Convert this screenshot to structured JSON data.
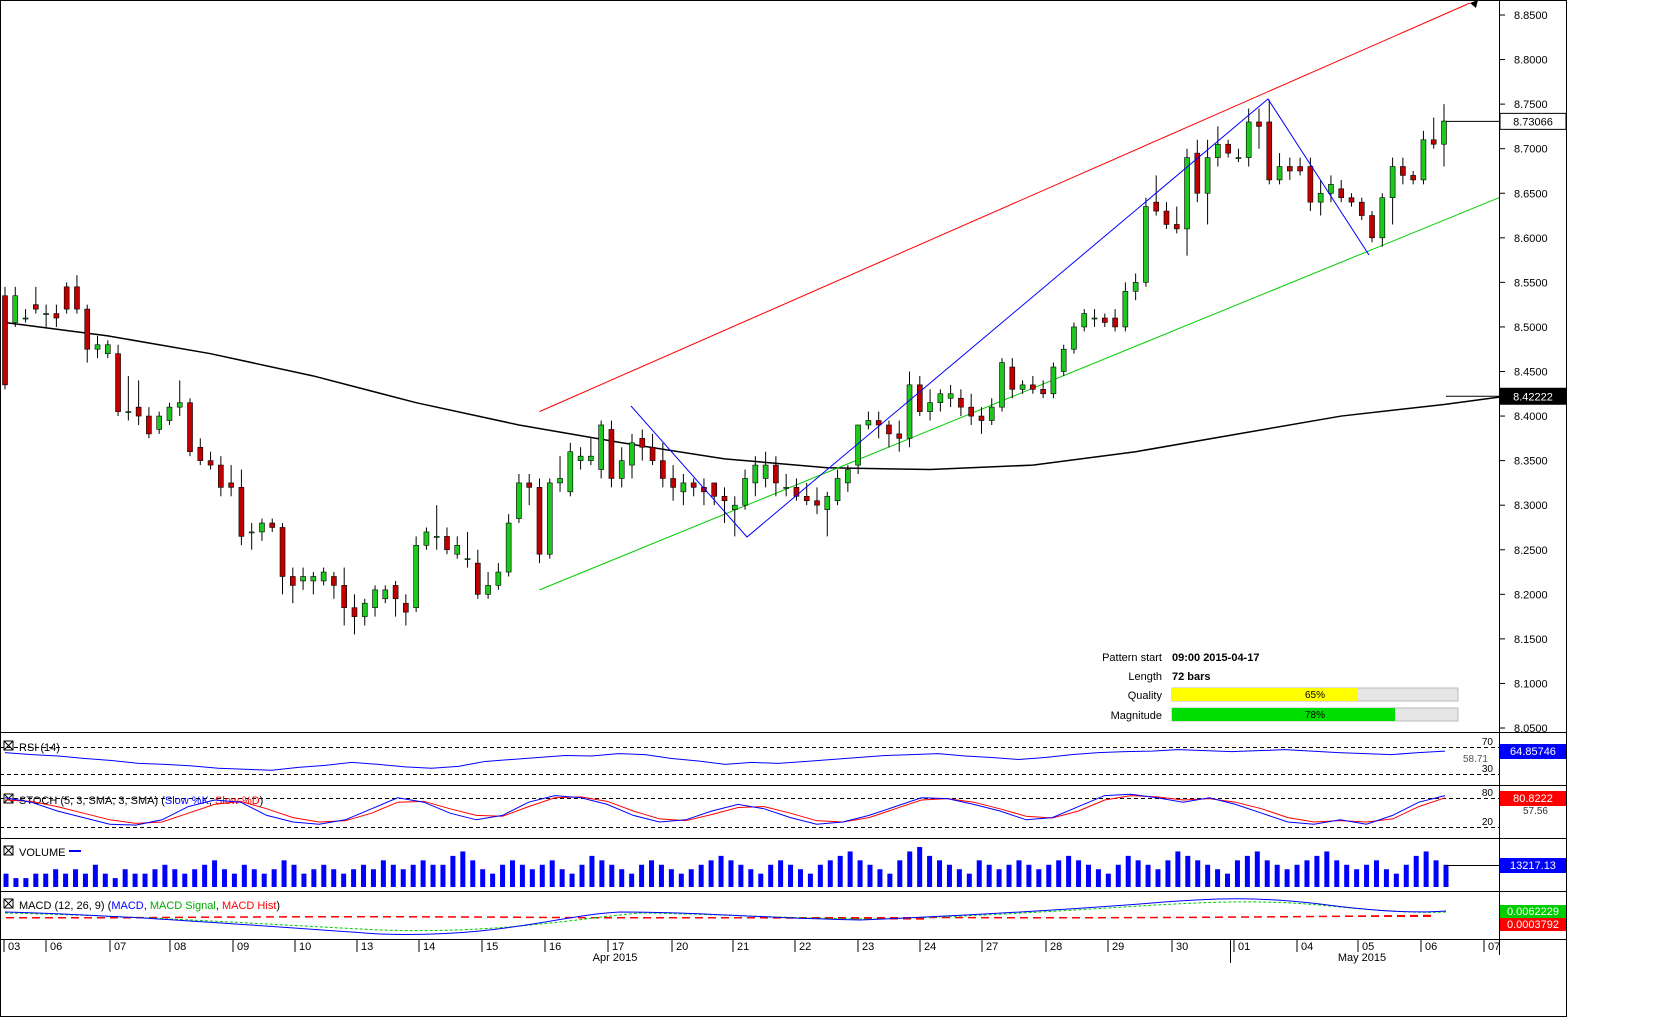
{
  "colors": {
    "bull": "#1ec81e",
    "bear": "#c00000",
    "sma": "#000000",
    "channel_upper": "#ff0000",
    "channel_lower": "#00cc00",
    "zigzag": "#0000ff",
    "rsi": "#0000ff",
    "stoch_k": "#0000ff",
    "stoch_d": "#ff0000",
    "volume": "#0000ff",
    "macd": "#0000ff",
    "macd_signal": "#00cc00",
    "macd_hist": "#ff0000",
    "quality_bar": "#ffff00",
    "magnitude_bar": "#00dd00"
  },
  "info": {
    "pattern_start_label": "Pattern start",
    "pattern_start_value": "09:00 2015-04-17",
    "length_label": "Length",
    "length_value": "72 bars",
    "quality_label": "Quality",
    "quality_value": "65%",
    "quality_fraction": 0.65,
    "magnitude_label": "Magnitude",
    "magnitude_value": "78%",
    "magnitude_fraction": 0.78
  },
  "panels": {
    "rsi": {
      "label": "RSI (14)",
      "level_high": "70",
      "level_low": "30",
      "value_box": "64.85746",
      "hidden_value": "58.71"
    },
    "stoch": {
      "label_prefix": "STOCH (5, 3, SMA, 3, SMA) (",
      "label_k": "Slow %K",
      "label_sep": ", ",
      "label_d": "Slow %D",
      "label_suffix": ")",
      "level_high": "80",
      "level_low": "20",
      "value_box": "80.8222",
      "hidden_value": "57.56"
    },
    "volume": {
      "label": "VOLUME",
      "value_box": "13217.13"
    },
    "macd": {
      "label_prefix": "MACD (12, 26, 9) (",
      "label_macd": "MACD",
      "label_sep1": ", ",
      "label_signal": "MACD Signal",
      "label_sep2": ", ",
      "label_hist": "MACD Hist",
      "label_suffix": ")",
      "value_box_1": "0.0062229",
      "value_box_2": "0.0003792"
    }
  },
  "chart_data": {
    "type": "candlestick",
    "y_ticks": [
      "8.8500",
      "8.8000",
      "8.7500",
      "8.7000",
      "8.6500",
      "8.6000",
      "8.5500",
      "8.5000",
      "8.4500",
      "8.4000",
      "8.3500",
      "8.3000",
      "8.2500",
      "8.2000",
      "8.1500",
      "8.1000",
      "8.0500"
    ],
    "ylim": [
      8.034,
      8.856
    ],
    "last_price": "8.73066",
    "sma_value": "8.42222",
    "x_date_labels": [
      "03",
      "06",
      "07",
      "08",
      "09",
      "10",
      "13",
      "14",
      "15",
      "16",
      "17",
      "20",
      "21",
      "22",
      "23",
      "24",
      "27",
      "28",
      "29",
      "30",
      "01",
      "04",
      "05",
      "06",
      "07"
    ],
    "month_labels": [
      "Apr 2015",
      "May 2015"
    ],
    "candles": [
      [
        8.535,
        8.545,
        8.43,
        8.435
      ],
      [
        8.505,
        8.545,
        8.5,
        8.535
      ],
      [
        8.51,
        8.52,
        8.505,
        8.51
      ],
      [
        8.525,
        8.545,
        8.515,
        8.52
      ],
      [
        8.515,
        8.525,
        8.5,
        8.515
      ],
      [
        8.515,
        8.525,
        8.5,
        8.51
      ],
      [
        8.545,
        8.55,
        8.515,
        8.52
      ],
      [
        8.545,
        8.558,
        8.515,
        8.52
      ],
      [
        8.52,
        8.525,
        8.46,
        8.475
      ],
      [
        8.475,
        8.49,
        8.465,
        8.48
      ],
      [
        8.47,
        8.485,
        8.465,
        8.48
      ],
      [
        8.47,
        8.48,
        8.4,
        8.405
      ],
      [
        8.405,
        8.445,
        8.395,
        8.405
      ],
      [
        8.41,
        8.44,
        8.39,
        8.4
      ],
      [
        8.4,
        8.41,
        8.375,
        8.38
      ],
      [
        8.385,
        8.405,
        8.38,
        8.4
      ],
      [
        8.395,
        8.415,
        8.39,
        8.41
      ],
      [
        8.41,
        8.44,
        8.4,
        8.415
      ],
      [
        8.415,
        8.42,
        8.355,
        8.36
      ],
      [
        8.365,
        8.375,
        8.345,
        8.35
      ],
      [
        8.35,
        8.36,
        8.34,
        8.345
      ],
      [
        8.345,
        8.355,
        8.31,
        8.32
      ],
      [
        8.325,
        8.345,
        8.31,
        8.32
      ],
      [
        8.32,
        8.34,
        8.255,
        8.265
      ],
      [
        8.27,
        8.28,
        8.25,
        8.27
      ],
      [
        8.27,
        8.285,
        8.26,
        8.28
      ],
      [
        8.28,
        8.285,
        8.27,
        8.275
      ],
      [
        8.275,
        8.28,
        8.2,
        8.22
      ],
      [
        8.22,
        8.23,
        8.19,
        8.21
      ],
      [
        8.215,
        8.23,
        8.205,
        8.22
      ],
      [
        8.215,
        8.225,
        8.2,
        8.22
      ],
      [
        8.215,
        8.23,
        8.21,
        8.225
      ],
      [
        8.22,
        8.225,
        8.195,
        8.21
      ],
      [
        8.21,
        8.23,
        8.165,
        8.185
      ],
      [
        8.185,
        8.2,
        8.155,
        8.175
      ],
      [
        8.175,
        8.195,
        8.165,
        8.19
      ],
      [
        8.185,
        8.21,
        8.175,
        8.205
      ],
      [
        8.195,
        8.21,
        8.19,
        8.205
      ],
      [
        8.21,
        8.215,
        8.175,
        8.195
      ],
      [
        8.19,
        8.2,
        8.165,
        8.18
      ],
      [
        8.185,
        8.265,
        8.18,
        8.255
      ],
      [
        8.255,
        8.275,
        8.25,
        8.27
      ],
      [
        8.265,
        8.3,
        8.25,
        8.265
      ],
      [
        8.265,
        8.275,
        8.245,
        8.25
      ],
      [
        8.245,
        8.265,
        8.24,
        8.255
      ],
      [
        8.24,
        8.27,
        8.23,
        8.24
      ],
      [
        8.235,
        8.25,
        8.195,
        8.2
      ],
      [
        8.2,
        8.225,
        8.195,
        8.21
      ],
      [
        8.21,
        8.235,
        8.205,
        8.225
      ],
      [
        8.225,
        8.29,
        8.22,
        8.28
      ],
      [
        8.285,
        8.335,
        8.28,
        8.325
      ],
      [
        8.325,
        8.335,
        8.3,
        8.32
      ],
      [
        8.32,
        8.33,
        8.235,
        8.245
      ],
      [
        8.245,
        8.33,
        8.24,
        8.325
      ],
      [
        8.325,
        8.355,
        8.315,
        8.33
      ],
      [
        8.315,
        8.37,
        8.31,
        8.36
      ],
      [
        8.35,
        8.365,
        8.34,
        8.355
      ],
      [
        8.35,
        8.375,
        8.345,
        8.355
      ],
      [
        8.34,
        8.395,
        8.33,
        8.39
      ],
      [
        8.385,
        8.395,
        8.32,
        8.33
      ],
      [
        8.33,
        8.365,
        8.32,
        8.35
      ],
      [
        8.345,
        8.38,
        8.33,
        8.37
      ],
      [
        8.375,
        8.385,
        8.35,
        8.365
      ],
      [
        8.365,
        8.38,
        8.345,
        8.35
      ],
      [
        8.35,
        8.37,
        8.32,
        8.33
      ],
      [
        8.33,
        8.345,
        8.305,
        8.32
      ],
      [
        8.315,
        8.335,
        8.3,
        8.325
      ],
      [
        8.325,
        8.33,
        8.31,
        8.32
      ],
      [
        8.32,
        8.33,
        8.3,
        8.315
      ],
      [
        8.325,
        8.325,
        8.3,
        8.31
      ],
      [
        8.31,
        8.32,
        8.28,
        8.305
      ],
      [
        8.295,
        8.31,
        8.265,
        8.3
      ],
      [
        8.3,
        8.34,
        8.295,
        8.33
      ],
      [
        8.325,
        8.355,
        8.31,
        8.345
      ],
      [
        8.33,
        8.36,
        8.32,
        8.345
      ],
      [
        8.345,
        8.355,
        8.31,
        8.325
      ],
      [
        8.32,
        8.335,
        8.31,
        8.32
      ],
      [
        8.32,
        8.33,
        8.305,
        8.31
      ],
      [
        8.31,
        8.325,
        8.3,
        8.305
      ],
      [
        8.305,
        8.32,
        8.29,
        8.3
      ],
      [
        8.295,
        8.315,
        8.265,
        8.31
      ],
      [
        8.305,
        8.34,
        8.3,
        8.33
      ],
      [
        8.325,
        8.345,
        8.315,
        8.34
      ],
      [
        8.345,
        8.39,
        8.335,
        8.39
      ],
      [
        8.39,
        8.405,
        8.385,
        8.395
      ],
      [
        8.395,
        8.405,
        8.375,
        8.39
      ],
      [
        8.39,
        8.395,
        8.365,
        8.38
      ],
      [
        8.38,
        8.395,
        8.36,
        8.375
      ],
      [
        8.375,
        8.45,
        8.365,
        8.435
      ],
      [
        8.435,
        8.445,
        8.4,
        8.405
      ],
      [
        8.405,
        8.43,
        8.395,
        8.415
      ],
      [
        8.415,
        8.43,
        8.405,
        8.425
      ],
      [
        8.42,
        8.435,
        8.41,
        8.425
      ],
      [
        8.42,
        8.43,
        8.4,
        8.41
      ],
      [
        8.41,
        8.425,
        8.39,
        8.4
      ],
      [
        8.4,
        8.41,
        8.38,
        8.395
      ],
      [
        8.395,
        8.42,
        8.39,
        8.41
      ],
      [
        8.41,
        8.465,
        8.405,
        8.46
      ],
      [
        8.455,
        8.465,
        8.42,
        8.43
      ],
      [
        8.43,
        8.44,
        8.425,
        8.435
      ],
      [
        8.435,
        8.445,
        8.425,
        8.43
      ],
      [
        8.43,
        8.44,
        8.42,
        8.425
      ],
      [
        8.425,
        8.46,
        8.42,
        8.455
      ],
      [
        8.45,
        8.48,
        8.445,
        8.475
      ],
      [
        8.475,
        8.505,
        8.47,
        8.5
      ],
      [
        8.5,
        8.52,
        8.495,
        8.515
      ],
      [
        8.51,
        8.52,
        8.5,
        8.51
      ],
      [
        8.51,
        8.515,
        8.5,
        8.505
      ],
      [
        8.51,
        8.52,
        8.495,
        8.5
      ],
      [
        8.5,
        8.55,
        8.495,
        8.54
      ],
      [
        8.54,
        8.56,
        8.53,
        8.55
      ],
      [
        8.55,
        8.645,
        8.545,
        8.635
      ],
      [
        8.64,
        8.67,
        8.625,
        8.63
      ],
      [
        8.63,
        8.64,
        8.61,
        8.615
      ],
      [
        8.615,
        8.635,
        8.605,
        8.61
      ],
      [
        8.61,
        8.7,
        8.58,
        8.69
      ],
      [
        8.695,
        8.71,
        8.64,
        8.65
      ],
      [
        8.65,
        8.71,
        8.615,
        8.69
      ],
      [
        8.69,
        8.725,
        8.68,
        8.705
      ],
      [
        8.705,
        8.71,
        8.69,
        8.695
      ],
      [
        8.69,
        8.7,
        8.685,
        8.69
      ],
      [
        8.69,
        8.745,
        8.68,
        8.73
      ],
      [
        8.73,
        8.745,
        8.7,
        8.725
      ],
      [
        8.73,
        8.755,
        8.66,
        8.665
      ],
      [
        8.665,
        8.695,
        8.66,
        8.68
      ],
      [
        8.68,
        8.69,
        8.665,
        8.675
      ],
      [
        8.68,
        8.69,
        8.67,
        8.675
      ],
      [
        8.68,
        8.69,
        8.63,
        8.64
      ],
      [
        8.64,
        8.665,
        8.625,
        8.65
      ],
      [
        8.65,
        8.67,
        8.64,
        8.66
      ],
      [
        8.655,
        8.665,
        8.64,
        8.645
      ],
      [
        8.645,
        8.65,
        8.635,
        8.64
      ],
      [
        8.64,
        8.645,
        8.62,
        8.625
      ],
      [
        8.625,
        8.63,
        8.595,
        8.6
      ],
      [
        8.6,
        8.65,
        8.59,
        8.645
      ],
      [
        8.645,
        8.69,
        8.615,
        8.68
      ],
      [
        8.68,
        8.69,
        8.66,
        8.67
      ],
      [
        8.67,
        8.675,
        8.66,
        8.665
      ],
      [
        8.665,
        8.72,
        8.66,
        8.71
      ],
      [
        8.71,
        8.735,
        8.7,
        8.705
      ],
      [
        8.705,
        8.75,
        8.68,
        8.731
      ]
    ],
    "sma_points": [
      [
        0,
        8.505
      ],
      [
        10,
        8.49
      ],
      [
        20,
        8.47
      ],
      [
        30,
        8.445
      ],
      [
        40,
        8.415
      ],
      [
        50,
        8.39
      ],
      [
        60,
        8.37
      ],
      [
        70,
        8.352
      ],
      [
        80,
        8.342
      ],
      [
        90,
        8.34
      ],
      [
        100,
        8.345
      ],
      [
        110,
        8.36
      ],
      [
        120,
        8.38
      ],
      [
        130,
        8.4
      ],
      [
        140,
        8.413
      ],
      [
        146,
        8.4222
      ]
    ],
    "channel_upper": [
      [
        52,
        8.405
      ],
      [
        121,
        8.755
      ],
      [
        150,
        8.86
      ]
    ],
    "channel_lower": [
      [
        52,
        8.205
      ],
      [
        122,
        8.56
      ],
      [
        151,
        8.645
      ]
    ],
    "zigzag": [
      [
        52,
        8.405
      ],
      [
        62,
        8.263
      ],
      [
        106,
        8.695
      ],
      [
        105,
        8.755
      ],
      [
        115,
        8.58
      ]
    ],
    "rsi": [
      62,
      58,
      55,
      50,
      46,
      40,
      38,
      35,
      30,
      28,
      26,
      32,
      36,
      42,
      38,
      33,
      30,
      34,
      44,
      48,
      52,
      56,
      55,
      60,
      58,
      50,
      45,
      38,
      42,
      40,
      44,
      48,
      52,
      56,
      58,
      60,
      55,
      52,
      48,
      52,
      58,
      62,
      64,
      65,
      68,
      66,
      64,
      66,
      68,
      65,
      62,
      60,
      58,
      62,
      65
    ],
    "stoch_k": [
      80,
      70,
      50,
      35,
      20,
      18,
      30,
      60,
      75,
      70,
      40,
      25,
      20,
      30,
      55,
      80,
      70,
      45,
      30,
      40,
      70,
      85,
      80,
      65,
      40,
      25,
      30,
      50,
      65,
      55,
      35,
      20,
      25,
      40,
      60,
      80,
      78,
      65,
      50,
      30,
      35,
      60,
      85,
      88,
      80,
      70,
      80,
      65,
      45,
      25,
      20,
      30,
      20,
      40,
      70,
      85
    ],
    "stoch_d": [
      75,
      72,
      60,
      45,
      30,
      22,
      25,
      45,
      65,
      72,
      55,
      35,
      25,
      28,
      45,
      70,
      72,
      55,
      40,
      38,
      60,
      80,
      82,
      72,
      50,
      32,
      28,
      42,
      58,
      60,
      45,
      28,
      25,
      35,
      55,
      75,
      78,
      70,
      55,
      38,
      34,
      50,
      75,
      85,
      82,
      75,
      78,
      70,
      55,
      35,
      25,
      28,
      25,
      32,
      60,
      80
    ],
    "volume": [
      3,
      2,
      2,
      3,
      3,
      4,
      3,
      4,
      3,
      5,
      3,
      2,
      4,
      3,
      3,
      4,
      5,
      4,
      3,
      4,
      5,
      6,
      4,
      3,
      5,
      4,
      3,
      4,
      6,
      5,
      3,
      4,
      5,
      4,
      3,
      4,
      5,
      4,
      6,
      5,
      4,
      5,
      6,
      5,
      5,
      7,
      8,
      6,
      4,
      3,
      5,
      6,
      5,
      4,
      5,
      6,
      4,
      3,
      5,
      7,
      6,
      5,
      4,
      3,
      5,
      6,
      5,
      4,
      3,
      4,
      5,
      6,
      7,
      6,
      5,
      4,
      3,
      5,
      6,
      5,
      4,
      3,
      5,
      6,
      7,
      8,
      6,
      5,
      4,
      3,
      6,
      8,
      9,
      7,
      6,
      5,
      4,
      3,
      6,
      5,
      4,
      5,
      6,
      5,
      4,
      5,
      6,
      7,
      6,
      5,
      4,
      3,
      5,
      7,
      6,
      5,
      4,
      6,
      8,
      7,
      6,
      5,
      4,
      3,
      6,
      7,
      8,
      6,
      5,
      4,
      5,
      6,
      7,
      8,
      6,
      5,
      4,
      5,
      6,
      4,
      3,
      5,
      7,
      8,
      6,
      5
    ]
  }
}
